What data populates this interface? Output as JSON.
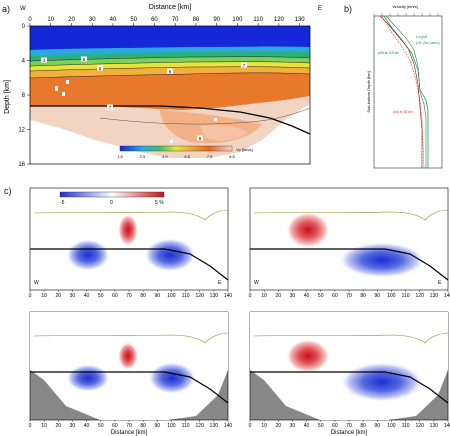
{
  "panel_a": {
    "label": "a)",
    "dir_left": "W",
    "dir_right": "E",
    "xlabel": "Distance [km]",
    "ylabel": "Depth [km]",
    "xticks": [
      0,
      10,
      20,
      30,
      40,
      50,
      60,
      70,
      80,
      90,
      100,
      110,
      120,
      130
    ],
    "yticks": [
      0,
      4,
      8,
      12,
      16
    ],
    "colorbar_unit": "Vp [km/s]",
    "colorbar_ticks": [
      "1.5",
      "2.5",
      "4.0",
      "5.5",
      "7.0",
      "8.5"
    ],
    "contour_labels": [
      "4",
      "6",
      "5",
      "6",
      "7",
      "7",
      "8"
    ]
  },
  "panel_b": {
    "label": "b)",
    "xlabel": "Velocity [km/s]",
    "ylabel": "Sub-bottom Depth [km]",
    "legend": [
      {
        "text": "Leg98",
        "color": "#2a9d6f"
      },
      {
        "text": "pVe (Ste saints)",
        "color": "#2a9d6f"
      },
      {
        "text": "p98 at 115 km",
        "color": "#2e7d4f"
      },
      {
        "text": "p58 at 38 km",
        "color": "#d8463b"
      }
    ]
  },
  "panel_c": {
    "label": "c)",
    "colorbar_ticks": [
      "-5",
      "0",
      "5 %"
    ],
    "dir_left": "W",
    "dir_right": "E",
    "xlabel": "Distance [km]",
    "xticks": [
      0,
      10,
      20,
      30,
      40,
      50,
      60,
      70,
      80,
      90,
      100,
      110,
      120,
      130,
      140
    ]
  }
}
